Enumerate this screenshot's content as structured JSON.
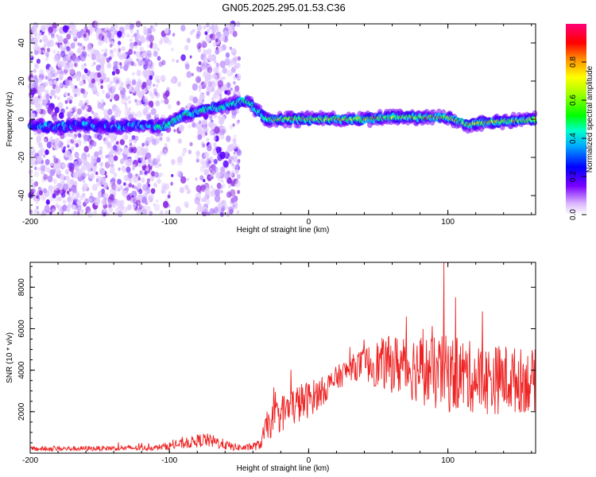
{
  "title": "GN05.2025.295.01.53.C36",
  "chart_data": [
    {
      "type": "heatmap",
      "xlabel": "Height of straight line (km)",
      "ylabel": "Frequency (Hz)",
      "xlim": [
        -200,
        163
      ],
      "ylim": [
        -50,
        50
      ],
      "xticks": [
        -200,
        -100,
        0,
        100
      ],
      "xtick_labels": [
        "-200",
        "-100",
        "0",
        "100"
      ],
      "yticks": [
        -40,
        -20,
        0,
        20,
        40
      ],
      "ytick_labels": [
        "-40",
        "-20",
        "0",
        "20",
        "40"
      ],
      "colorbar": {
        "label": "Normalized spectral amplitude",
        "range": [
          0,
          1
        ],
        "ticks": [
          0,
          0.2,
          0.4,
          0.6,
          0.8
        ],
        "tick_labels": [
          "0.0",
          "0.2",
          "0.4",
          "0.6",
          "0.8"
        ],
        "colors": [
          "#ffffff",
          "#7a00ff",
          "#0000ff",
          "#00ffff",
          "#00ff00",
          "#ffff00",
          "#ff0000",
          "#ff0066"
        ]
      },
      "ridge": {
        "x": [
          -200,
          -180,
          -160,
          -140,
          -120,
          -105,
          -90,
          -75,
          -60,
          -45,
          -38,
          -30,
          -20,
          0,
          20,
          40,
          60,
          80,
          100,
          115,
          120,
          140,
          163
        ],
        "frequency": [
          -3,
          -4,
          -3,
          -4,
          -3,
          -4,
          2,
          5,
          7,
          10,
          5,
          0,
          0,
          0,
          0,
          0,
          1,
          1,
          1,
          -3,
          -2,
          -1,
          0
        ]
      }
    },
    {
      "type": "line",
      "xlabel": "Height of straight line (km)",
      "ylabel": "SNR (10 * v/v)",
      "xlim": [
        -200,
        163
      ],
      "ylim": [
        0,
        9200
      ],
      "xticks": [
        -200,
        -100,
        0,
        100
      ],
      "xtick_labels": [
        "-200",
        "-100",
        "0",
        "100"
      ],
      "yticks": [
        2000,
        4000,
        6000,
        8000
      ],
      "ytick_labels": [
        "2000",
        "4000",
        "6000",
        "8000"
      ],
      "color": "#ee2222",
      "envelope": {
        "x": [
          -200,
          -150,
          -110,
          -90,
          -75,
          -65,
          -55,
          -45,
          -35,
          -30,
          -20,
          -10,
          0,
          10,
          20,
          30,
          40,
          50,
          60,
          70,
          80,
          90,
          97,
          100,
          110,
          120,
          130,
          140,
          150,
          163
        ],
        "mean": [
          200,
          230,
          260,
          450,
          650,
          500,
          300,
          250,
          400,
          1300,
          1900,
          2300,
          2600,
          3000,
          3600,
          4100,
          4300,
          4300,
          4300,
          4200,
          4100,
          3800,
          3900,
          3800,
          3800,
          3600,
          3500,
          3600,
          3500,
          3500
        ],
        "spread": [
          120,
          120,
          130,
          250,
          350,
          300,
          200,
          150,
          250,
          700,
          900,
          1000,
          900,
          700,
          600,
          600,
          800,
          1200,
          1400,
          1600,
          1700,
          1800,
          1800,
          1900,
          1800,
          1700,
          1700,
          1700,
          1600,
          1500
        ]
      },
      "peak": {
        "x": 97,
        "y": 9200
      }
    }
  ]
}
